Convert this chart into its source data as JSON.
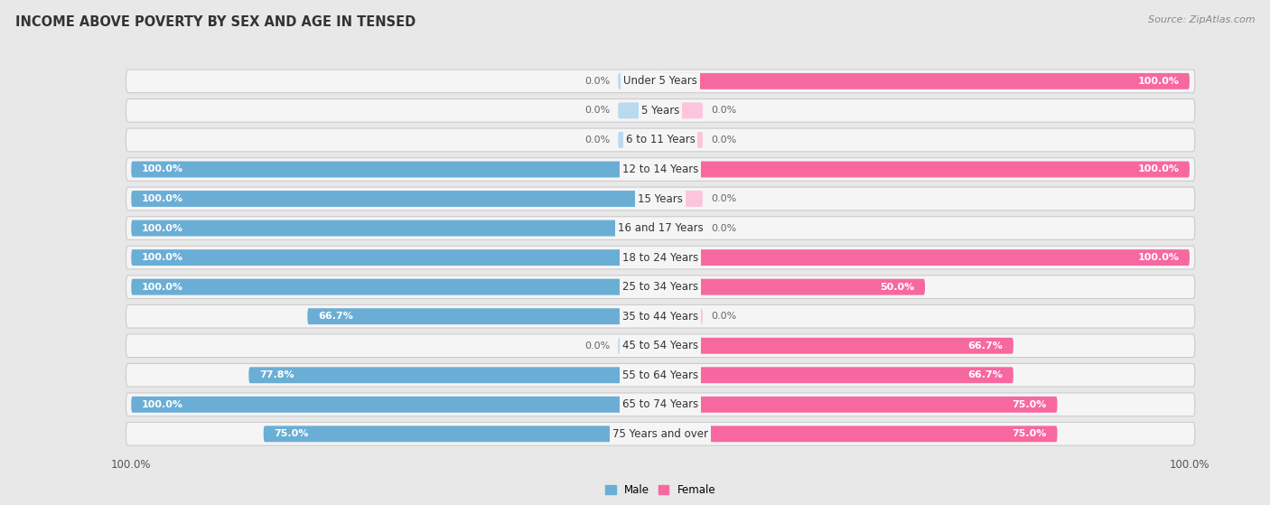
{
  "title": "INCOME ABOVE POVERTY BY SEX AND AGE IN TENSED",
  "source": "Source: ZipAtlas.com",
  "categories": [
    "Under 5 Years",
    "5 Years",
    "6 to 11 Years",
    "12 to 14 Years",
    "15 Years",
    "16 and 17 Years",
    "18 to 24 Years",
    "25 to 34 Years",
    "35 to 44 Years",
    "45 to 54 Years",
    "55 to 64 Years",
    "65 to 74 Years",
    "75 Years and over"
  ],
  "male": [
    0.0,
    0.0,
    0.0,
    100.0,
    100.0,
    100.0,
    100.0,
    100.0,
    66.7,
    0.0,
    77.8,
    100.0,
    75.0
  ],
  "female": [
    100.0,
    0.0,
    0.0,
    100.0,
    0.0,
    0.0,
    100.0,
    50.0,
    0.0,
    66.7,
    66.7,
    75.0,
    75.0
  ],
  "male_color": "#6aaed6",
  "female_color": "#f768a1",
  "male_stub_color": "#b8d9ee",
  "female_stub_color": "#fcc5dc",
  "row_bg_color": "#e8e8e8",
  "row_fill_color": "#f5f5f5",
  "fig_bg_color": "#e8e8e8",
  "title_color": "#333333",
  "label_color_inside": "#ffffff",
  "label_color_outside": "#666666",
  "title_fontsize": 10.5,
  "tick_fontsize": 8.5,
  "bar_label_fontsize": 8.0,
  "cat_label_fontsize": 8.5,
  "legend_male": "Male",
  "legend_female": "Female",
  "max_val": 100,
  "stub_size": 8.0
}
